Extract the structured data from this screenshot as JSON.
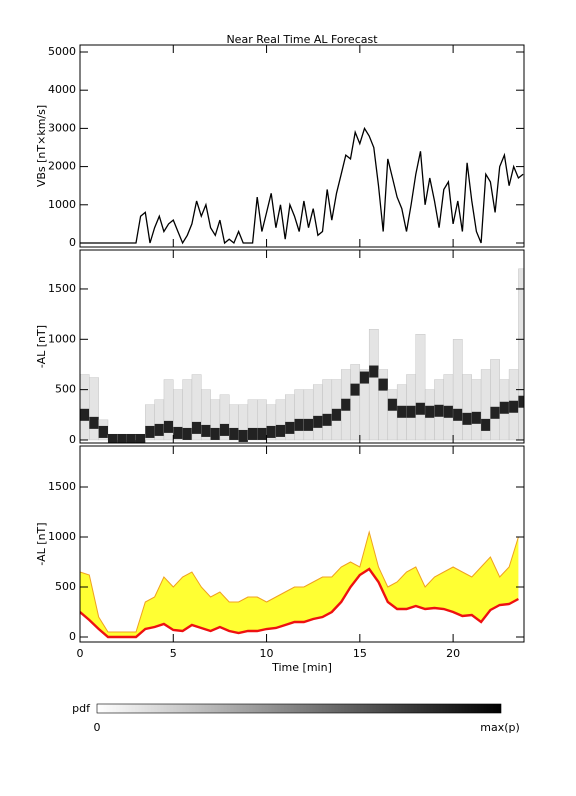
{
  "chart_data": [
    {
      "type": "line",
      "title": "Near Real Time AL Forecast",
      "ylabel": "VBs [nT×km/s]",
      "color": "#000000",
      "x": [
        0,
        0.25,
        0.5,
        0.75,
        1,
        1.25,
        1.5,
        1.75,
        2,
        2.25,
        2.5,
        2.75,
        3,
        3.25,
        3.5,
        3.75,
        4,
        4.25,
        4.5,
        4.75,
        5,
        5.25,
        5.5,
        5.75,
        6,
        6.25,
        6.5,
        6.75,
        7,
        7.25,
        7.5,
        7.75,
        8,
        8.25,
        8.5,
        8.75,
        9,
        9.25,
        9.5,
        9.75,
        10,
        10.25,
        10.5,
        10.75,
        11,
        11.25,
        11.5,
        11.75,
        12,
        12.25,
        12.5,
        12.75,
        13,
        13.25,
        13.5,
        13.75,
        14,
        14.25,
        14.5,
        14.75,
        15,
        15.25,
        15.5,
        15.75,
        16,
        16.25,
        16.5,
        16.75,
        17,
        17.25,
        17.5,
        17.75,
        18,
        18.25,
        18.5,
        18.75,
        19,
        19.25,
        19.5,
        19.75,
        20,
        20.25,
        20.5,
        20.75,
        21,
        21.25,
        21.5,
        21.75,
        22,
        22.25,
        22.5,
        22.75,
        23,
        23.25,
        23.5,
        23.75
      ],
      "values": [
        0,
        0,
        0,
        0,
        0,
        0,
        0,
        0,
        0,
        0,
        0,
        0,
        0,
        700,
        800,
        0,
        400,
        700,
        300,
        500,
        600,
        300,
        0,
        200,
        500,
        1100,
        700,
        1000,
        400,
        200,
        600,
        0,
        100,
        0,
        300,
        0,
        0,
        0,
        1200,
        300,
        800,
        1300,
        400,
        1000,
        100,
        1000,
        700,
        300,
        1100,
        400,
        900,
        200,
        300,
        1400,
        600,
        1300,
        1800,
        2300,
        2200,
        2900,
        2600,
        3000,
        2800,
        2500,
        1500,
        300,
        2200,
        1700,
        1200,
        900,
        300,
        1000,
        1800,
        2400,
        1000,
        1700,
        1100,
        400,
        1400,
        1600,
        500,
        1100,
        300,
        2100,
        1100,
        300,
        0,
        1800,
        1600,
        800,
        2000,
        2300,
        1500,
        2000,
        1700,
        1800
      ],
      "xlim": [
        0,
        23.8
      ],
      "xticks": [
        0,
        5,
        10,
        15,
        20
      ],
      "ylim": [
        -105,
        5183
      ],
      "yticks": [
        0,
        1000,
        2000,
        3000,
        4000,
        5000
      ]
    },
    {
      "type": "pdf",
      "ylabel": "-AL [nT]",
      "color": "#000000",
      "x": [
        0,
        0.5,
        1,
        1.5,
        2,
        2.5,
        3,
        3.5,
        4,
        4.5,
        5,
        5.5,
        6,
        6.5,
        7,
        7.5,
        8,
        8.5,
        9,
        9.5,
        10,
        10.5,
        11,
        11.5,
        12,
        12.5,
        13,
        13.5,
        14,
        14.5,
        15,
        15.5,
        16,
        16.5,
        17,
        17.5,
        18,
        18.5,
        19,
        19.5,
        20,
        20.5,
        21,
        21.5,
        22,
        22.5,
        23,
        23.5
      ],
      "values": [
        250,
        170,
        80,
        0,
        0,
        0,
        0,
        80,
        100,
        130,
        70,
        60,
        120,
        90,
        60,
        100,
        60,
        40,
        60,
        60,
        80,
        90,
        120,
        150,
        150,
        180,
        200,
        250,
        350,
        500,
        620,
        680,
        550,
        350,
        280,
        280,
        310,
        280,
        290,
        280,
        250,
        210,
        220,
        150,
        270,
        320,
        330,
        380
      ],
      "high": [
        650,
        620,
        200,
        50,
        50,
        50,
        50,
        350,
        400,
        600,
        500,
        600,
        650,
        500,
        400,
        450,
        350,
        350,
        400,
        400,
        350,
        400,
        450,
        500,
        500,
        550,
        600,
        600,
        700,
        750,
        700,
        1100,
        700,
        500,
        550,
        650,
        1050,
        500,
        600,
        650,
        1000,
        650,
        600,
        700,
        800,
        600,
        700,
        1700
      ],
      "xlim": [
        0,
        23.8
      ],
      "xticks": [
        0,
        5,
        10,
        15,
        20
      ],
      "ylim": [
        -30,
        1887
      ],
      "yticks": [
        0,
        500,
        1000,
        1500
      ],
      "colorbar": {
        "label": "pdf",
        "min_label": "0",
        "max_label": "max(p)"
      }
    },
    {
      "type": "band",
      "ylabel": "-AL [nT]",
      "xlabel": "Time [min]",
      "color": "#ee1111",
      "band_color": "#ffff33",
      "edge_color": "#f0a020",
      "x": [
        0,
        0.5,
        1,
        1.5,
        2,
        2.5,
        3,
        3.5,
        4,
        4.5,
        5,
        5.5,
        6,
        6.5,
        7,
        7.5,
        8,
        8.5,
        9,
        9.5,
        10,
        10.5,
        11,
        11.5,
        12,
        12.5,
        13,
        13.5,
        14,
        14.5,
        15,
        15.5,
        16,
        16.5,
        17,
        17.5,
        18,
        18.5,
        19,
        19.5,
        20,
        20.5,
        21,
        21.5,
        22,
        22.5,
        23,
        23.5
      ],
      "values": [
        250,
        170,
        80,
        0,
        0,
        0,
        0,
        80,
        100,
        130,
        70,
        60,
        120,
        90,
        60,
        100,
        60,
        40,
        60,
        60,
        80,
        90,
        120,
        150,
        150,
        180,
        200,
        250,
        350,
        500,
        620,
        680,
        550,
        350,
        280,
        280,
        310,
        280,
        290,
        280,
        250,
        210,
        220,
        150,
        270,
        320,
        330,
        380
      ],
      "upper": [
        650,
        620,
        200,
        50,
        50,
        50,
        50,
        350,
        400,
        600,
        500,
        600,
        650,
        500,
        400,
        450,
        350,
        350,
        400,
        400,
        350,
        400,
        450,
        500,
        500,
        550,
        600,
        600,
        700,
        750,
        700,
        1050,
        700,
        500,
        550,
        650,
        700,
        500,
        600,
        650,
        700,
        650,
        600,
        700,
        800,
        600,
        700,
        1000
      ],
      "xlim": [
        0,
        23.8
      ],
      "xticks": [
        0,
        5,
        10,
        15,
        20
      ],
      "ylim": [
        -50,
        1910
      ],
      "yticks": [
        0,
        500,
        1000,
        1500
      ]
    }
  ]
}
